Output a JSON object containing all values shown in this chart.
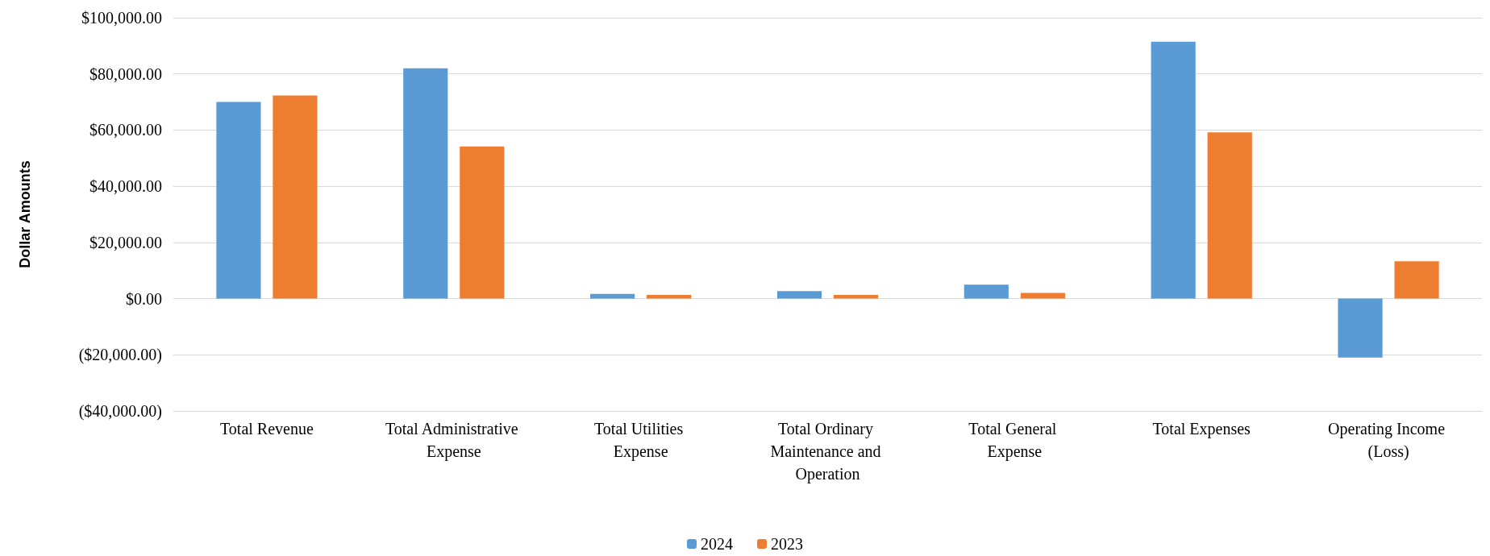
{
  "chart_data": {
    "type": "bar",
    "ylabel": "Dollar Amounts",
    "categories": [
      "Total Revenue",
      "Total Administrative Expense",
      "Total Utilities Expense",
      "Total Ordinary Maintenance and Operation",
      "Total General Expense",
      "Total Expenses",
      "Operating Income (Loss)"
    ],
    "series": [
      {
        "name": "2024",
        "color": "#5b9bd5",
        "values": [
          70000,
          82000,
          1700,
          2700,
          5000,
          91500,
          -21000
        ]
      },
      {
        "name": "2023",
        "color": "#ed7d31",
        "values": [
          72300,
          54200,
          1300,
          1300,
          2000,
          59200,
          13300
        ]
      }
    ],
    "ylim": [
      -40000,
      100000
    ],
    "yticks": [
      {
        "value": -40000,
        "label": "($40,000.00)"
      },
      {
        "value": -20000,
        "label": "($20,000.00)"
      },
      {
        "value": 0,
        "label": "$0.00"
      },
      {
        "value": 20000,
        "label": "$20,000.00"
      },
      {
        "value": 40000,
        "label": "$40,000.00"
      },
      {
        "value": 60000,
        "label": "$60,000.00"
      },
      {
        "value": 80000,
        "label": "$80,000.00"
      },
      {
        "value": 100000,
        "label": "$100,000.00"
      }
    ],
    "grid": "y",
    "legend": "bottom"
  }
}
